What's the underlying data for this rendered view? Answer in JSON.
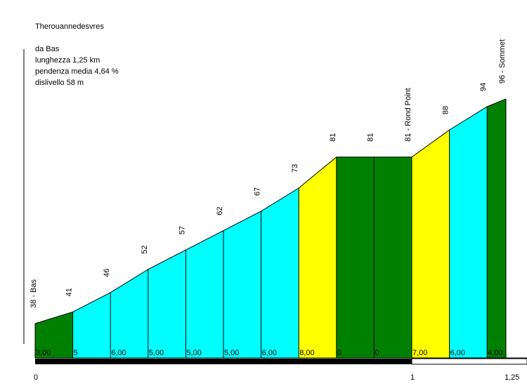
{
  "info": {
    "title": "Therouannedesvres",
    "from": "da Bas",
    "length": "lunghezza 1,25 km",
    "avg_gradient": "pendenza media 4,64 %",
    "elevation_gain": "dislivello 58 m"
  },
  "chart_data": {
    "type": "area",
    "title": "Therouannedesvres",
    "xlabel": "",
    "ylabel": "",
    "xlim": [
      0,
      1.25
    ],
    "ylim": [
      30,
      110
    ],
    "grid": false,
    "km_ticks": [
      {
        "value": 0,
        "label": "0"
      },
      {
        "value": 1,
        "label": "1"
      },
      {
        "value": 1.25,
        "label": "1,25"
      }
    ],
    "points": [
      {
        "x": 0,
        "altitude": 38,
        "label": "38 - Bas"
      },
      {
        "x": 0.1,
        "altitude": 41,
        "label": "41"
      },
      {
        "x": 0.2,
        "altitude": 46,
        "label": "46"
      },
      {
        "x": 0.3,
        "altitude": 52,
        "label": "52"
      },
      {
        "x": 0.4,
        "altitude": 57,
        "label": "57"
      },
      {
        "x": 0.5,
        "altitude": 62,
        "label": "62"
      },
      {
        "x": 0.6,
        "altitude": 67,
        "label": "67"
      },
      {
        "x": 0.7,
        "altitude": 73,
        "label": "73"
      },
      {
        "x": 0.8,
        "altitude": 81,
        "label": "81"
      },
      {
        "x": 0.9,
        "altitude": 81,
        "label": "81"
      },
      {
        "x": 1.0,
        "altitude": 81,
        "label": "81 - Rond Point"
      },
      {
        "x": 1.1,
        "altitude": 88,
        "label": "88"
      },
      {
        "x": 1.2,
        "altitude": 94,
        "label": "94"
      },
      {
        "x": 1.25,
        "altitude": 96,
        "label": "96 - Sommet"
      }
    ],
    "segments": [
      {
        "gradient": "3,00",
        "color": "#008000"
      },
      {
        "gradient": "5",
        "color": "#00ffff"
      },
      {
        "gradient": "6,00",
        "color": "#00ffff"
      },
      {
        "gradient": "5,00",
        "color": "#00ffff"
      },
      {
        "gradient": "5,00",
        "color": "#00ffff"
      },
      {
        "gradient": "5,00",
        "color": "#00ffff"
      },
      {
        "gradient": "6,00",
        "color": "#00ffff"
      },
      {
        "gradient": "8,00",
        "color": "#ffff00"
      },
      {
        "gradient": "0",
        "color": "#008000"
      },
      {
        "gradient": "0",
        "color": "#008000"
      },
      {
        "gradient": "7,00",
        "color": "#ffff00"
      },
      {
        "gradient": "6,00",
        "color": "#00ffff"
      },
      {
        "gradient": "4,00",
        "color": "#008000"
      }
    ]
  }
}
